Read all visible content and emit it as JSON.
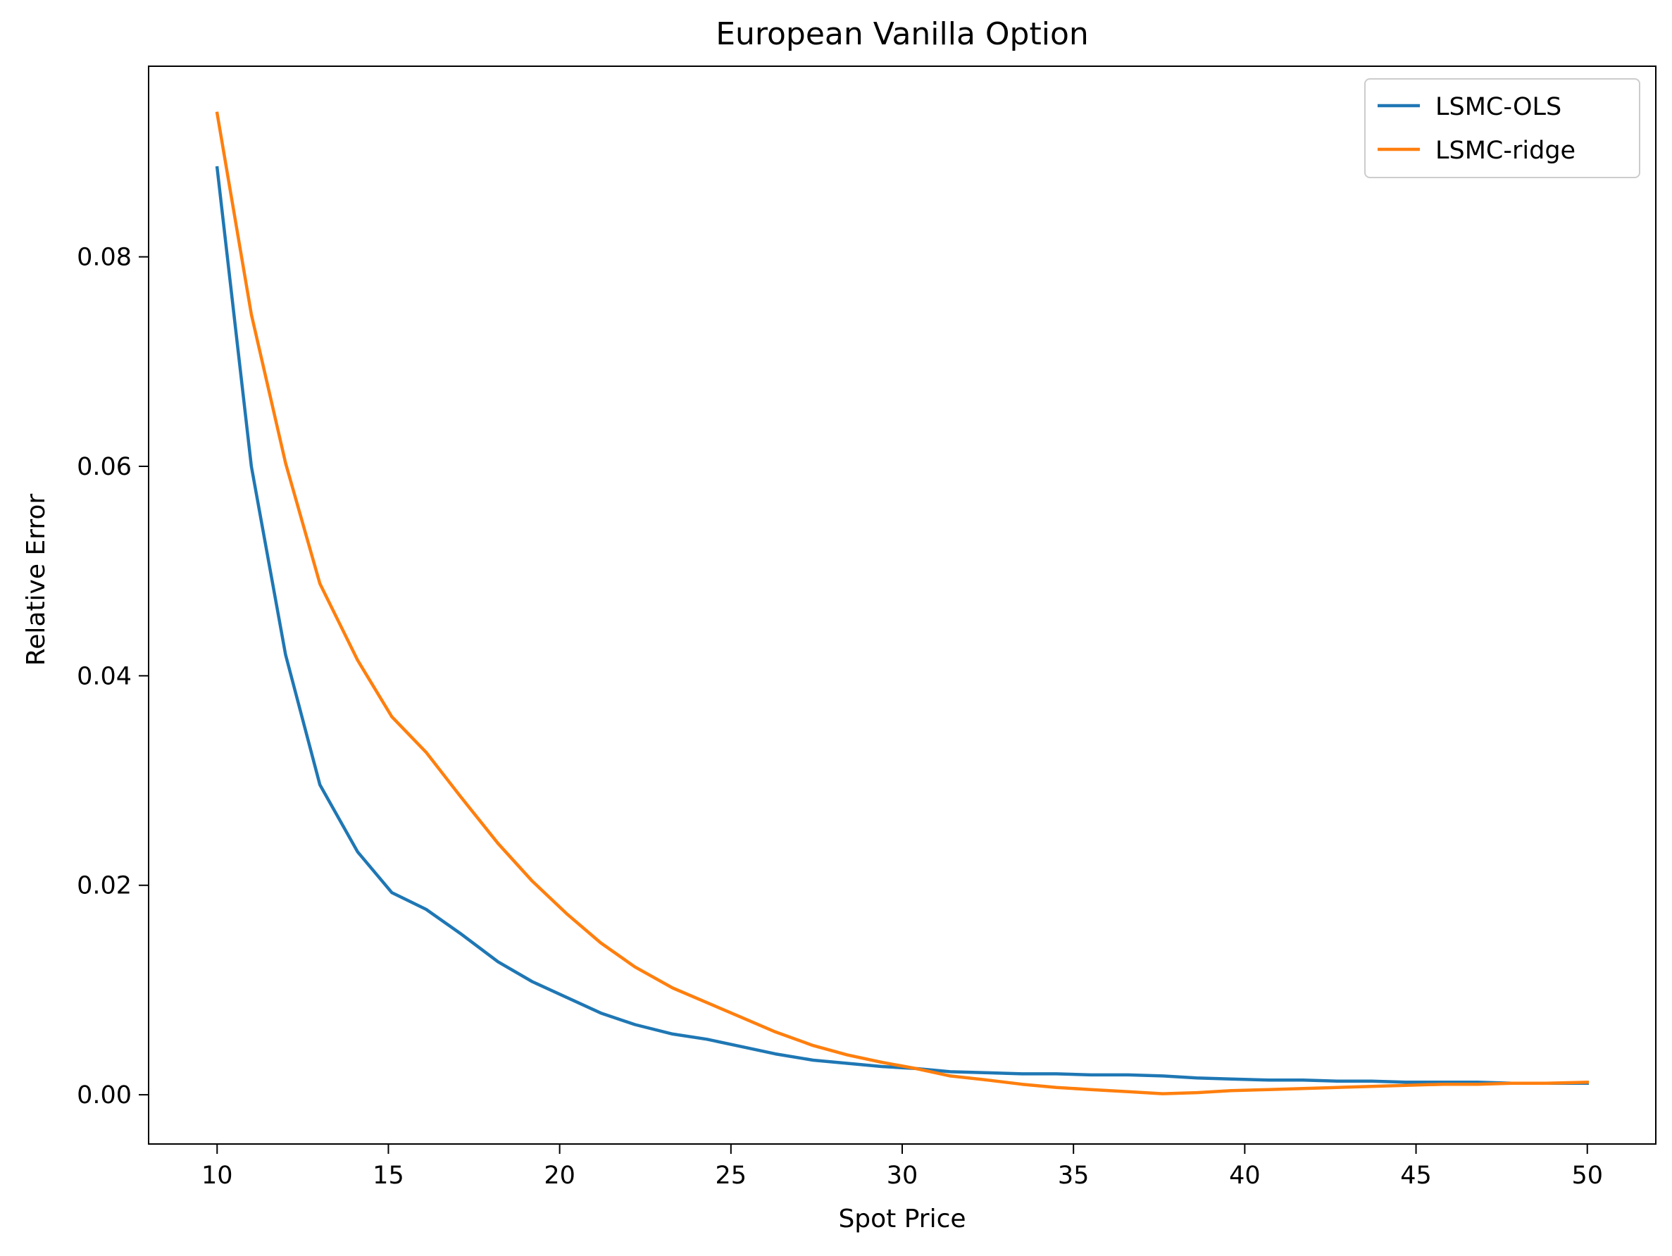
{
  "chart_data": {
    "type": "line",
    "title": "European Vanilla Option",
    "xlabel": "Spot Price",
    "ylabel": "Relative Error",
    "xlim": [
      8,
      52
    ],
    "ylim": [
      -0.0047,
      0.0982
    ],
    "xticks": [
      10,
      15,
      20,
      25,
      30,
      35,
      40,
      45,
      50
    ],
    "yticks": [
      0.0,
      0.02,
      0.04,
      0.06,
      0.08
    ],
    "xtick_labels": [
      "10",
      "15",
      "20",
      "25",
      "30",
      "35",
      "40",
      "45",
      "50"
    ],
    "ytick_labels": [
      "0.00",
      "0.02",
      "0.04",
      "0.06",
      "0.08"
    ],
    "grid": false,
    "legend_position": "top-right",
    "x": [
      10.0,
      11.0,
      12.0,
      13.0,
      14.1,
      15.1,
      16.1,
      17.1,
      18.2,
      19.2,
      20.2,
      21.2,
      22.2,
      23.3,
      24.3,
      25.3,
      26.3,
      27.4,
      28.4,
      29.4,
      30.4,
      31.4,
      32.5,
      33.5,
      34.5,
      35.5,
      36.6,
      37.6,
      38.6,
      39.6,
      40.7,
      41.7,
      42.7,
      43.7,
      44.7,
      45.8,
      46.8,
      47.8,
      48.8,
      50.0
    ],
    "series": [
      {
        "name": "LSMC-OLS",
        "color": "#1f77b4",
        "values": [
          0.0885,
          0.06,
          0.042,
          0.0296,
          0.0232,
          0.0193,
          0.0177,
          0.0154,
          0.0127,
          0.0108,
          0.0093,
          0.0078,
          0.0067,
          0.0058,
          0.0053,
          0.0046,
          0.0039,
          0.0033,
          0.003,
          0.0027,
          0.0025,
          0.0022,
          0.0021,
          0.002,
          0.002,
          0.0019,
          0.0019,
          0.0018,
          0.0016,
          0.0015,
          0.0014,
          0.0014,
          0.0013,
          0.0013,
          0.0012,
          0.0012,
          0.0012,
          0.0011,
          0.0011,
          0.0011
        ]
      },
      {
        "name": "LSMC-ridge",
        "color": "#ff7f0e",
        "values": [
          0.0937,
          0.0745,
          0.0603,
          0.0488,
          0.0415,
          0.0361,
          0.0327,
          0.0285,
          0.024,
          0.0204,
          0.0173,
          0.0145,
          0.0122,
          0.0102,
          0.0088,
          0.0074,
          0.006,
          0.0047,
          0.0038,
          0.0031,
          0.0025,
          0.0018,
          0.0014,
          0.001,
          0.0007,
          0.0005,
          0.0003,
          0.0001,
          0.0002,
          0.0004,
          0.0005,
          0.0006,
          0.0007,
          0.0008,
          0.0009,
          0.001,
          0.001,
          0.0011,
          0.0011,
          0.0012
        ]
      }
    ]
  }
}
